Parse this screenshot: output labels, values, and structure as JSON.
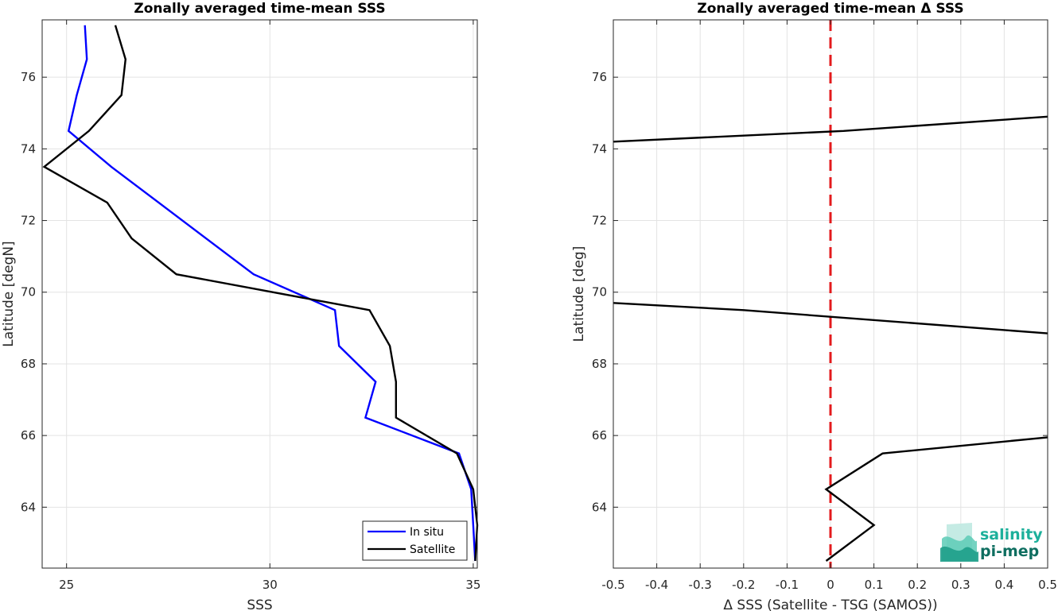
{
  "chart_data": [
    {
      "type": "line",
      "title": "Zonally averaged time-mean SSS",
      "xlabel": "SSS",
      "ylabel": "Latitude [degN]",
      "xlim": [
        24.4,
        35.1
      ],
      "ylim": [
        62.3,
        77.6
      ],
      "xticks": [
        25,
        30,
        35
      ],
      "yticks": [
        64,
        66,
        68,
        70,
        72,
        74,
        76
      ],
      "grid": true,
      "legend": "bottom-right",
      "series": [
        {
          "name": "In situ",
          "color": "#0000ff",
          "points": [
            [
              25.45,
              77.45
            ],
            [
              25.5,
              76.5
            ],
            [
              25.25,
              75.5
            ],
            [
              25.05,
              74.5
            ],
            [
              26.1,
              73.5
            ],
            [
              29.6,
              70.5
            ],
            [
              31.6,
              69.5
            ],
            [
              31.7,
              68.5
            ],
            [
              32.6,
              67.5
            ],
            [
              32.35,
              66.5
            ],
            [
              34.65,
              65.5
            ],
            [
              34.95,
              64.5
            ],
            [
              35.0,
              63.5
            ],
            [
              35.05,
              62.5
            ]
          ]
        },
        {
          "name": "Satellite",
          "color": "#000000",
          "points": [
            [
              26.2,
              77.45
            ],
            [
              26.45,
              76.5
            ],
            [
              26.35,
              75.5
            ],
            [
              25.55,
              74.5
            ],
            [
              24.45,
              73.5
            ],
            [
              26.0,
              72.5
            ],
            [
              26.6,
              71.5
            ],
            [
              27.7,
              70.5
            ],
            [
              32.45,
              69.5
            ],
            [
              32.95,
              68.5
            ],
            [
              33.1,
              67.5
            ],
            [
              33.1,
              66.5
            ],
            [
              34.6,
              65.5
            ],
            [
              35.0,
              64.5
            ],
            [
              35.1,
              63.5
            ],
            [
              35.05,
              62.5
            ]
          ]
        }
      ]
    },
    {
      "type": "line",
      "title": "Zonally averaged time-mean Δ SSS",
      "xlabel": "Δ SSS (Satellite - TSG (SAMOS))",
      "ylabel": "Latitude [deg]",
      "xlim": [
        -0.5,
        0.5
      ],
      "ylim": [
        62.3,
        77.6
      ],
      "xticks": [
        -0.5,
        -0.4,
        -0.3,
        -0.2,
        -0.1,
        0,
        0.1,
        0.2,
        0.3,
        0.4,
        0.5
      ],
      "yticks": [
        64,
        66,
        68,
        70,
        72,
        74,
        76
      ],
      "grid": true,
      "reference_line": {
        "x": 0,
        "color": "#e31a1c",
        "style": "dashed"
      },
      "series": [
        {
          "color": "#000000",
          "segments": [
            [
              [
                -0.5,
                74.2
              ],
              [
                0.03,
                74.5
              ],
              [
                0.5,
                74.9
              ]
            ],
            [
              [
                -0.5,
                69.7
              ],
              [
                -0.2,
                69.5
              ],
              [
                0.5,
                68.85
              ]
            ],
            [
              [
                0.5,
                65.95
              ],
              [
                0.12,
                65.5
              ],
              [
                -0.01,
                64.5
              ],
              [
                0.1,
                63.5
              ],
              [
                -0.01,
                62.5
              ]
            ]
          ]
        }
      ]
    }
  ],
  "logo": {
    "line1": "salinity",
    "line2": "pi-mep",
    "color1": "#1db09b",
    "color2": "#0e6e60"
  }
}
